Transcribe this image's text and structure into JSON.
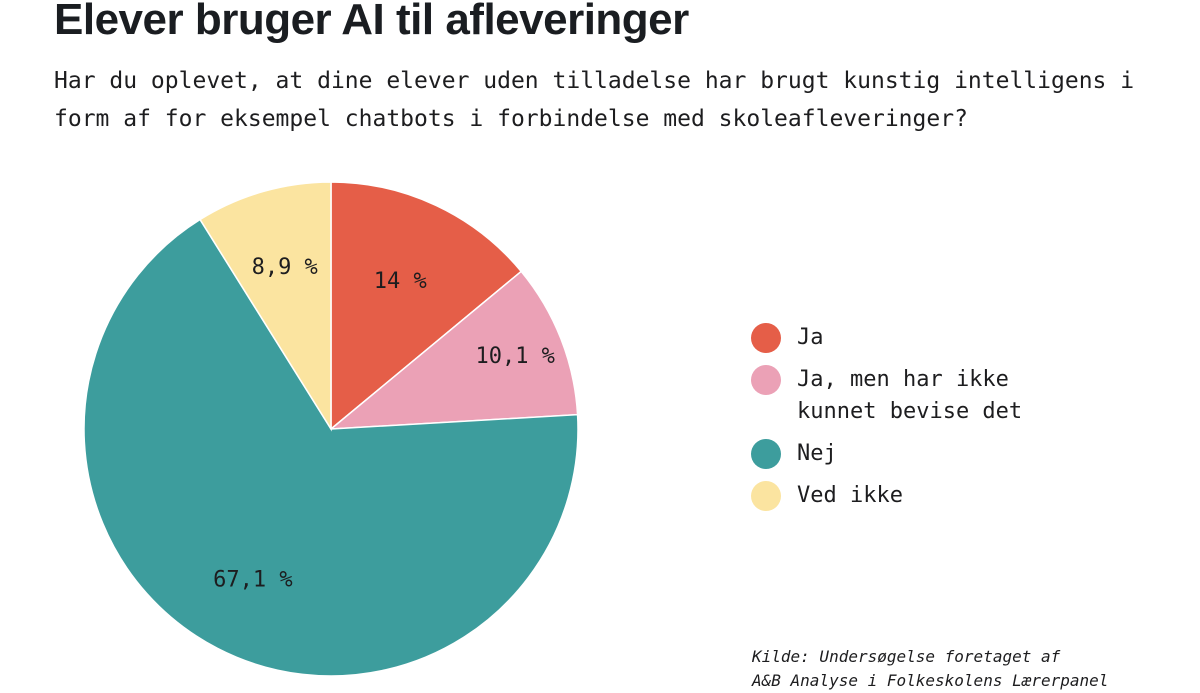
{
  "title": "Elever bruger AI til afleveringer",
  "subtitle": "Har du oplevet, at dine elever uden tilladelse har brugt kunstig intelligens i form af for eksempel chatbots i forbindelse med skoleafleveringer?",
  "source": {
    "line1": "Kilde: Undersøgelse foretaget af",
    "line2": "A&B Analyse i Folkeskolens Lærerpanel"
  },
  "chart_data": {
    "type": "pie",
    "slices": [
      {
        "name": "Ja",
        "value": 14.0,
        "label": "14 %",
        "color": "#e55e48"
      },
      {
        "name": "Ja, men har ikke kunnet bevise det",
        "value": 10.1,
        "label": "10,1 %",
        "color": "#eba1b6"
      },
      {
        "name": "Nej",
        "value": 67.1,
        "label": "67,1 %",
        "color": "#3d9d9d"
      },
      {
        "name": "Ved ikke",
        "value": 8.9,
        "label": "8,9 %",
        "color": "#fbe4a0"
      }
    ],
    "legend_position": "right",
    "start_angle": "top",
    "direction": "clockwise"
  },
  "legend": {
    "items": [
      {
        "lines": [
          "Ja"
        ],
        "color": "#e55e48"
      },
      {
        "lines": [
          "Ja, men har ikke",
          "kunnet bevise det"
        ],
        "color": "#eba1b6"
      },
      {
        "lines": [
          "Nej"
        ],
        "color": "#3d9d9d"
      },
      {
        "lines": [
          "Ved ikke"
        ],
        "color": "#fbe4a0"
      }
    ]
  }
}
